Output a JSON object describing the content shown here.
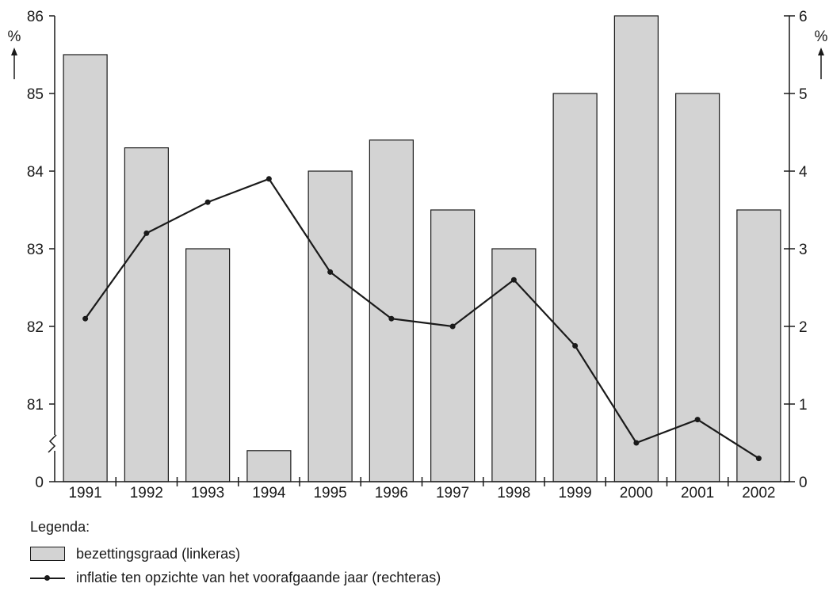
{
  "chart_data": {
    "type": "bar",
    "categories": [
      "1991",
      "1992",
      "1993",
      "1994",
      "1995",
      "1996",
      "1997",
      "1998",
      "1999",
      "2000",
      "2001",
      "2002"
    ],
    "series": [
      {
        "name": "bezettingsgraad (linkeras)",
        "type": "bar",
        "axis": "left",
        "values": [
          85.5,
          84.3,
          83.0,
          80.4,
          84.0,
          84.4,
          83.5,
          83.0,
          85.0,
          86.0,
          85.0,
          83.5
        ]
      },
      {
        "name": "inflatie ten opzichte van het voorafgaande jaar (rechteras)",
        "type": "line",
        "axis": "right",
        "values": [
          2.1,
          3.2,
          3.6,
          3.9,
          2.7,
          2.1,
          2.0,
          2.6,
          1.75,
          0.5,
          0.8,
          0.3
        ]
      }
    ],
    "left_axis": {
      "label": "%",
      "ticks": [
        "0",
        "81",
        "82",
        "83",
        "84",
        "85",
        "86"
      ],
      "tick_values": [
        80,
        81,
        82,
        83,
        84,
        85,
        86
      ],
      "range": [
        80,
        86
      ],
      "broken": true
    },
    "right_axis": {
      "label": "%",
      "ticks": [
        "0",
        "1",
        "2",
        "3",
        "4",
        "5",
        "6"
      ],
      "range": [
        0,
        6
      ]
    },
    "grid": false,
    "legend_title": "Legenda:",
    "legend_placement": "bottom-left"
  }
}
